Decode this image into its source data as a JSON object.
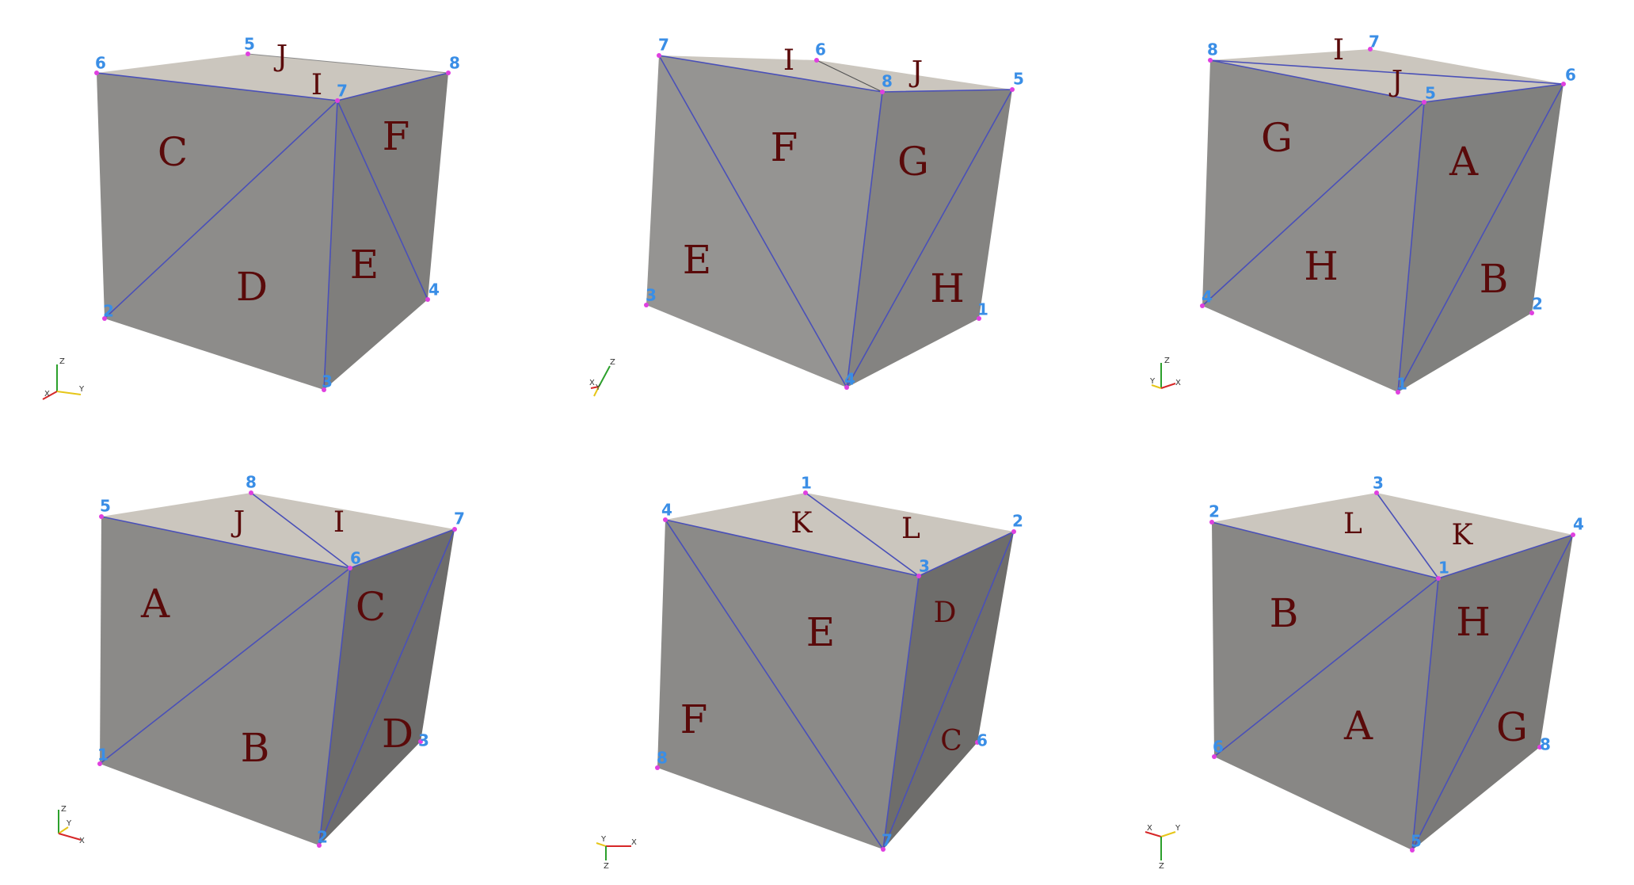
{
  "panels": [
    {
      "axes": {
        "labels": [
          "Z",
          "X",
          "Y"
        ],
        "colors": [
          "#2ca02c",
          "#d62728",
          "#e6c619"
        ]
      },
      "vertex_labels": [
        "6",
        "5",
        "8",
        "7",
        "2",
        "4",
        "3"
      ],
      "face_labels": [
        "J",
        "I",
        "C",
        "F",
        "D",
        "E"
      ]
    },
    {
      "axes": {
        "labels": [
          "Z",
          "X",
          "Y"
        ],
        "colors": [
          "#2ca02c",
          "#d62728",
          "#e6c619"
        ]
      },
      "vertex_labels": [
        "7",
        "6",
        "8",
        "5",
        "3",
        "1",
        "4"
      ],
      "face_labels": [
        "I",
        "J",
        "F",
        "G",
        "E",
        "H"
      ]
    },
    {
      "axes": {
        "labels": [
          "Z",
          "Y",
          "X"
        ],
        "colors": [
          "#2ca02c",
          "#e6c619",
          "#d62728"
        ]
      },
      "vertex_labels": [
        "8",
        "7",
        "5",
        "6",
        "4",
        "2",
        "1"
      ],
      "face_labels": [
        "I",
        "J",
        "G",
        "A",
        "H",
        "B"
      ]
    },
    {
      "axes": {
        "labels": [
          "Z",
          "Y",
          "X"
        ],
        "colors": [
          "#2ca02c",
          "#e6c619",
          "#d62728"
        ]
      },
      "vertex_labels": [
        "5",
        "8",
        "7",
        "6",
        "1",
        "3",
        "2"
      ],
      "face_labels": [
        "J",
        "I",
        "A",
        "C",
        "B",
        "D"
      ]
    },
    {
      "axes": {
        "labels": [
          "Y",
          "X",
          "Z"
        ],
        "colors": [
          "#e6c619",
          "#d62728",
          "#2ca02c"
        ]
      },
      "vertex_labels": [
        "4",
        "1",
        "2",
        "3",
        "8",
        "6",
        "7"
      ],
      "face_labels": [
        "K",
        "L",
        "E",
        "D",
        "F",
        "C"
      ]
    },
    {
      "axes": {
        "labels": [
          "X",
          "Y",
          "Z"
        ],
        "colors": [
          "#d62728",
          "#e6c619",
          "#2ca02c"
        ]
      },
      "vertex_labels": [
        "2",
        "3",
        "4",
        "1",
        "6",
        "8",
        "5"
      ],
      "face_labels": [
        "L",
        "K",
        "B",
        "H",
        "A",
        "G"
      ]
    }
  ]
}
